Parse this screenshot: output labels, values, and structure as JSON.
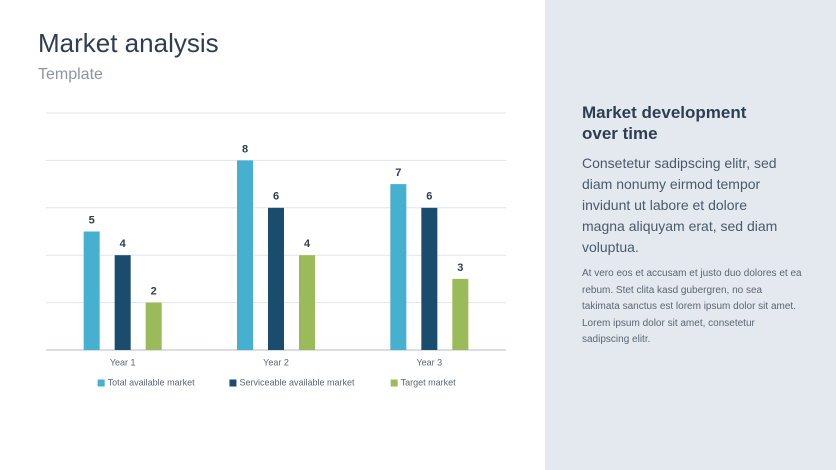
{
  "chart_data": {
    "type": "bar",
    "title": "Market analysis",
    "subtitle": "Template",
    "categories": [
      "Year 1",
      "Year 2",
      "Year 3"
    ],
    "series": [
      {
        "name": "Total available market",
        "color": "#45b0cf",
        "values": [
          5,
          8,
          7
        ]
      },
      {
        "name": "Serviceable available market",
        "color": "#1a4c6e",
        "values": [
          4,
          6,
          6
        ]
      },
      {
        "name": "Target market",
        "color": "#9bba59",
        "values": [
          2,
          4,
          3
        ]
      }
    ],
    "ylim": [
      0,
      10
    ],
    "yticks": [
      0,
      2,
      4,
      6,
      8,
      10
    ],
    "grid": true,
    "legend": "bottom"
  },
  "side_panel": {
    "heading": "Market development over time",
    "text": "Consetetur sadipscing elitr, sed diam nonumy eirmod tempor invidunt ut labore et dolore magna aliquyam erat, sed diam voluptua.",
    "small_text": "At vero eos et accusam et justo duo dolores et ea rebum. Stet clita kasd gubergren, no sea takimata sanctus est lorem ipsum dolor sit amet. Lorem ipsum dolor sit amet, consetetur sadipscing elitr."
  }
}
